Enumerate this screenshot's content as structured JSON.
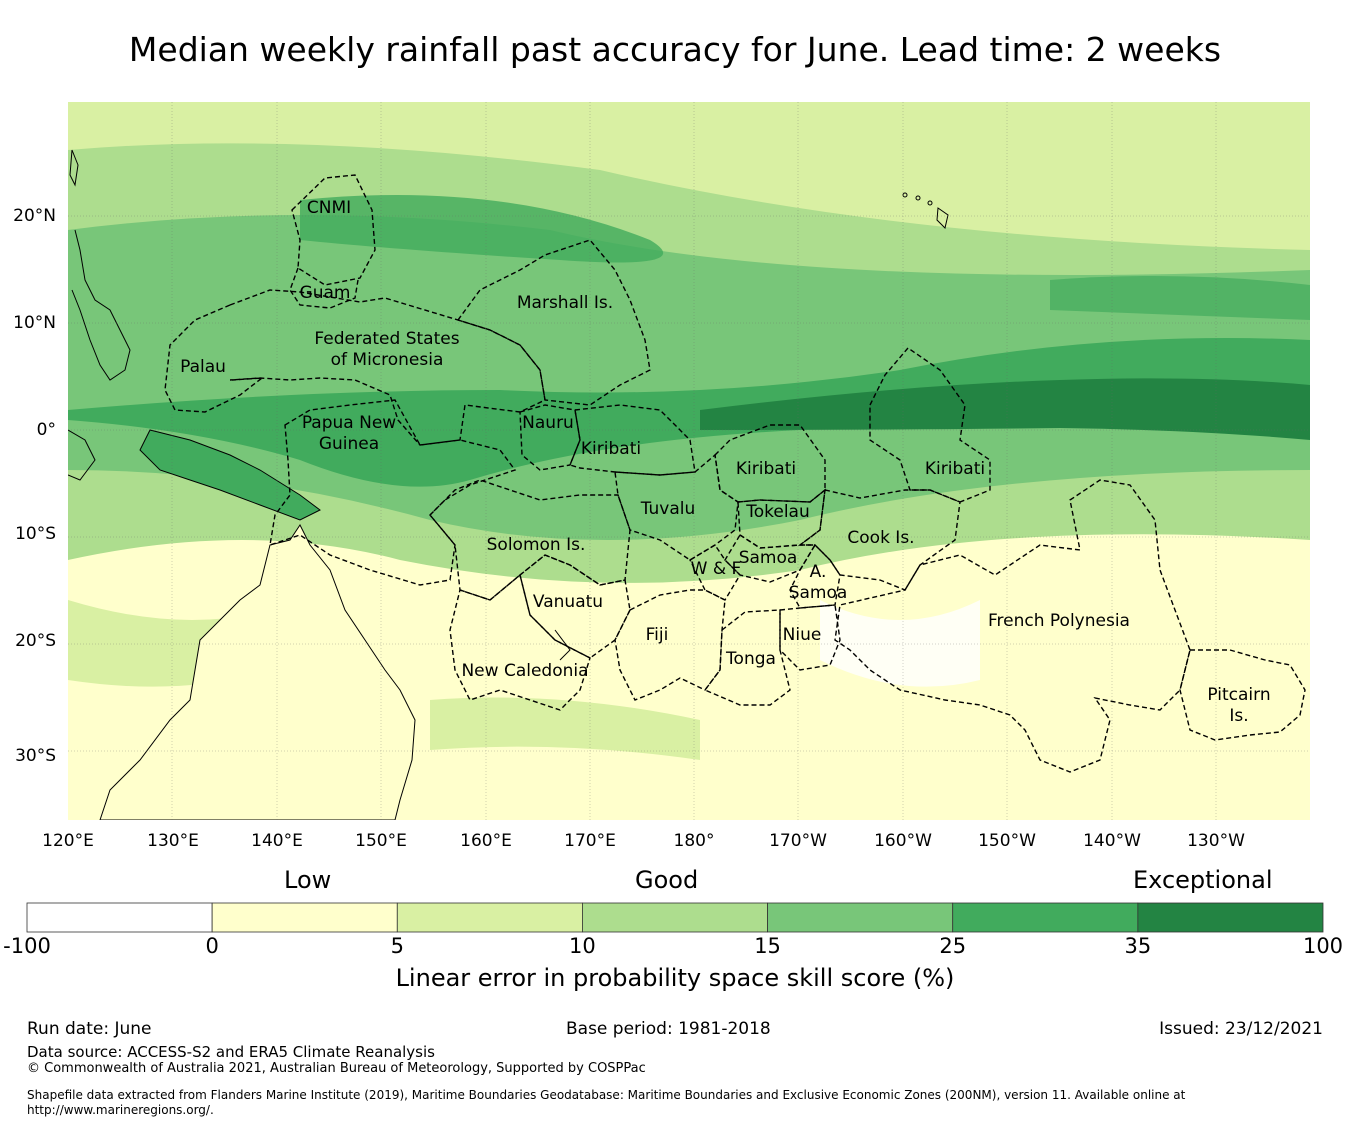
{
  "title": "Median weekly rainfall past accuracy for June. Lead time: 2 weeks",
  "map": {
    "lon_ticks": [
      "120°E",
      "130°E",
      "140°E",
      "150°E",
      "160°E",
      "170°E",
      "180°",
      "170°W",
      "160°W",
      "150°W",
      "140°W",
      "130°W"
    ],
    "lat_ticks": [
      "20°N",
      "10°N",
      "0°",
      "10°S",
      "20°S",
      "30°S"
    ],
    "regions": [
      {
        "id": "cnmi",
        "name": "CNMI"
      },
      {
        "id": "guam",
        "name": "Guam"
      },
      {
        "id": "marshall",
        "name": "Marshall Is."
      },
      {
        "id": "fsm",
        "name": "Federated States\nof Micronesia"
      },
      {
        "id": "palau",
        "name": "Palau"
      },
      {
        "id": "png",
        "name": "Papua New\nGuinea"
      },
      {
        "id": "nauru",
        "name": "Nauru"
      },
      {
        "id": "kiribati_w",
        "name": "Kiribati"
      },
      {
        "id": "kiribati_c",
        "name": "Kiribati"
      },
      {
        "id": "kiribati_e",
        "name": "Kiribati"
      },
      {
        "id": "tuvalu",
        "name": "Tuvalu"
      },
      {
        "id": "tokelau",
        "name": "Tokelau"
      },
      {
        "id": "solomon",
        "name": "Solomon Is."
      },
      {
        "id": "cook",
        "name": "Cook Is."
      },
      {
        "id": "samoa",
        "name": "Samoa"
      },
      {
        "id": "wf",
        "name": "W & F"
      },
      {
        "id": "asamoa",
        "name": "A.\nSamoa"
      },
      {
        "id": "vanuatu",
        "name": "Vanuatu"
      },
      {
        "id": "fiji",
        "name": "Fiji"
      },
      {
        "id": "niue",
        "name": "Niue"
      },
      {
        "id": "tonga",
        "name": "Tonga"
      },
      {
        "id": "fp",
        "name": "French Polynesia"
      },
      {
        "id": "newcal",
        "name": "New Caledonia"
      },
      {
        "id": "pitcairn",
        "name": "Pitcairn\nIs."
      }
    ]
  },
  "colorbar": {
    "headings": {
      "low": "Low",
      "good": "Good",
      "exceptional": "Exceptional"
    },
    "bins": [
      {
        "from": "-100",
        "to": "0",
        "color": "#ffffff"
      },
      {
        "from": "0",
        "to": "5",
        "color": "#ffffcc"
      },
      {
        "from": "5",
        "to": "10",
        "color": "#d9f0a3"
      },
      {
        "from": "10",
        "to": "15",
        "color": "#addd8e"
      },
      {
        "from": "15",
        "to": "25",
        "color": "#78c679"
      },
      {
        "from": "25",
        "to": "35",
        "color": "#41ab5d"
      },
      {
        "from": "35",
        "to": "100",
        "color": "#238443"
      }
    ],
    "ticks": [
      "-100",
      "0",
      "5",
      "10",
      "15",
      "25",
      "35",
      "100"
    ],
    "label": "Linear error in probability space skill score (%)"
  },
  "footer": {
    "run_date": "Run date: June",
    "base_period": "Base period: 1981-2018",
    "issued": "Issued: 23/12/2021",
    "data_source": "Data source: ACCESS-S2 and ERA5 Climate Reanalysis",
    "copyright": "© Commonwealth of Australia 2021, Australian Bureau of Meteorology, Supported by COSPPac",
    "shapefile_line1": "Shapefile data extracted from Flanders Marine Institute (2019), Maritime Boundaries Geodatabase: Maritime Boundaries and Exclusive Economic Zones (200NM), version 11. Available online at",
    "shapefile_line2": "http://www.marineregions.org/."
  }
}
